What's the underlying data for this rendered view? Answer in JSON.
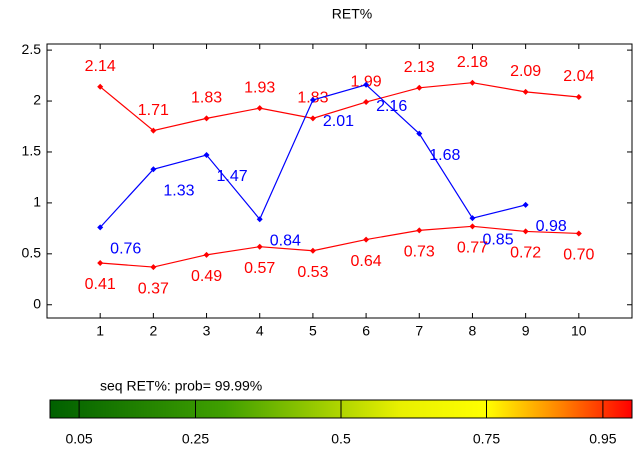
{
  "chart_data": {
    "type": "line",
    "title": "RET%",
    "xlim": [
      0,
      11
    ],
    "xticks": [
      1,
      2,
      3,
      4,
      5,
      6,
      7,
      8,
      9,
      10
    ],
    "ylim": [
      -0.13,
      2.56
    ],
    "yticks": [
      0,
      0.5,
      1,
      1.5,
      2,
      2.5
    ],
    "grid": false,
    "series": [
      {
        "color": "#ff0000",
        "x": [
          1,
          2,
          3,
          4,
          5,
          6,
          7,
          8,
          9,
          10
        ],
        "values": [
          2.14,
          1.71,
          1.83,
          1.93,
          1.83,
          1.99,
          2.13,
          2.18,
          2.09,
          2.04
        ],
        "value_labels": [
          "2.14",
          "1.71",
          "1.83",
          "1.93",
          "1.83",
          "1.99",
          "2.13",
          "2.18",
          "2.09",
          "2.04"
        ]
      },
      {
        "color": "#ff0000",
        "x": [
          1,
          2,
          3,
          4,
          5,
          6,
          7,
          8,
          9,
          10
        ],
        "values": [
          0.41,
          0.37,
          0.49,
          0.57,
          0.53,
          0.64,
          0.73,
          0.77,
          0.72,
          0.7
        ],
        "value_labels": [
          "0.41",
          "0.37",
          "0.49",
          "0.57",
          "0.53",
          "0.64",
          "0.73",
          "0.77",
          "0.72",
          "0.70"
        ]
      },
      {
        "color": "#0000ff",
        "x": [
          1,
          2,
          3,
          4,
          5,
          6,
          7,
          8,
          9
        ],
        "values": [
          0.76,
          1.33,
          1.47,
          0.84,
          2.01,
          2.16,
          1.68,
          0.85,
          0.98
        ],
        "value_labels": [
          "0.76",
          "1.33",
          "1.47",
          "0.84",
          "2.01",
          "2.16",
          "1.68",
          "0.85",
          "0.98"
        ]
      }
    ],
    "colorbar": {
      "label": "seq RET%: prob= 99.99%",
      "lim": [
        0,
        1
      ],
      "ticks": [
        0.05,
        0.25,
        0.5,
        0.75,
        0.95
      ]
    }
  }
}
